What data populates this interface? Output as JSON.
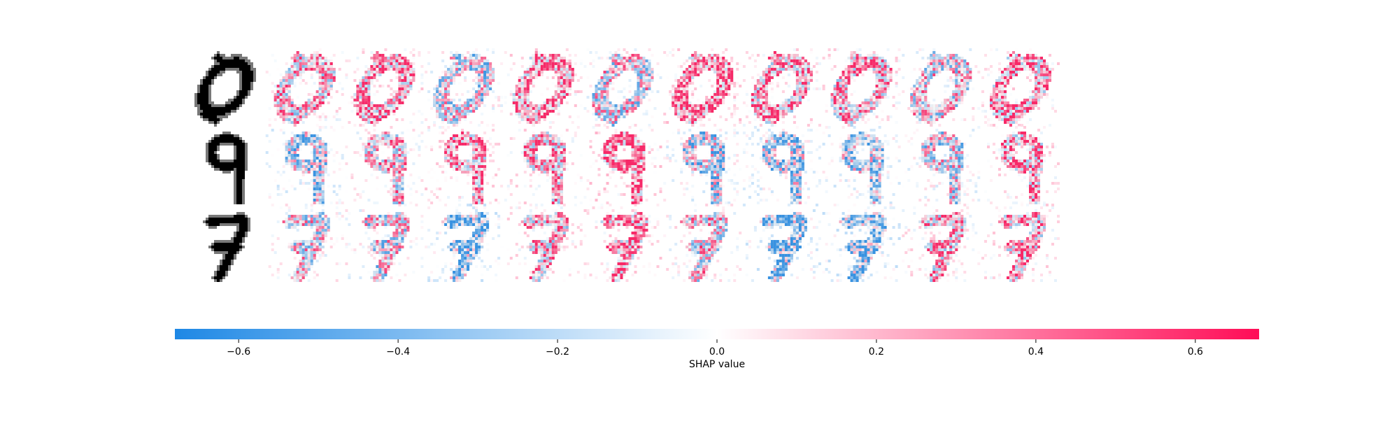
{
  "chart_data": {
    "type": "heatmap",
    "title": "",
    "rows": [
      {
        "digit": "0",
        "shape": "zero"
      },
      {
        "digit": "9",
        "shape": "nine"
      },
      {
        "digit": "7",
        "shape": "seven"
      }
    ],
    "explanation_columns": 10,
    "colorbar": {
      "label": "SHAP value",
      "min": -0.68,
      "max": 0.68,
      "ticks": [
        -0.6,
        -0.4,
        -0.2,
        0.0,
        0.2,
        0.4,
        0.6
      ],
      "tick_labels": [
        "−0.6",
        "−0.4",
        "−0.2",
        "0.0",
        "0.2",
        "0.4",
        "0.6"
      ],
      "negative_color": "#1e88e5",
      "positive_color": "#ff0d57"
    }
  }
}
